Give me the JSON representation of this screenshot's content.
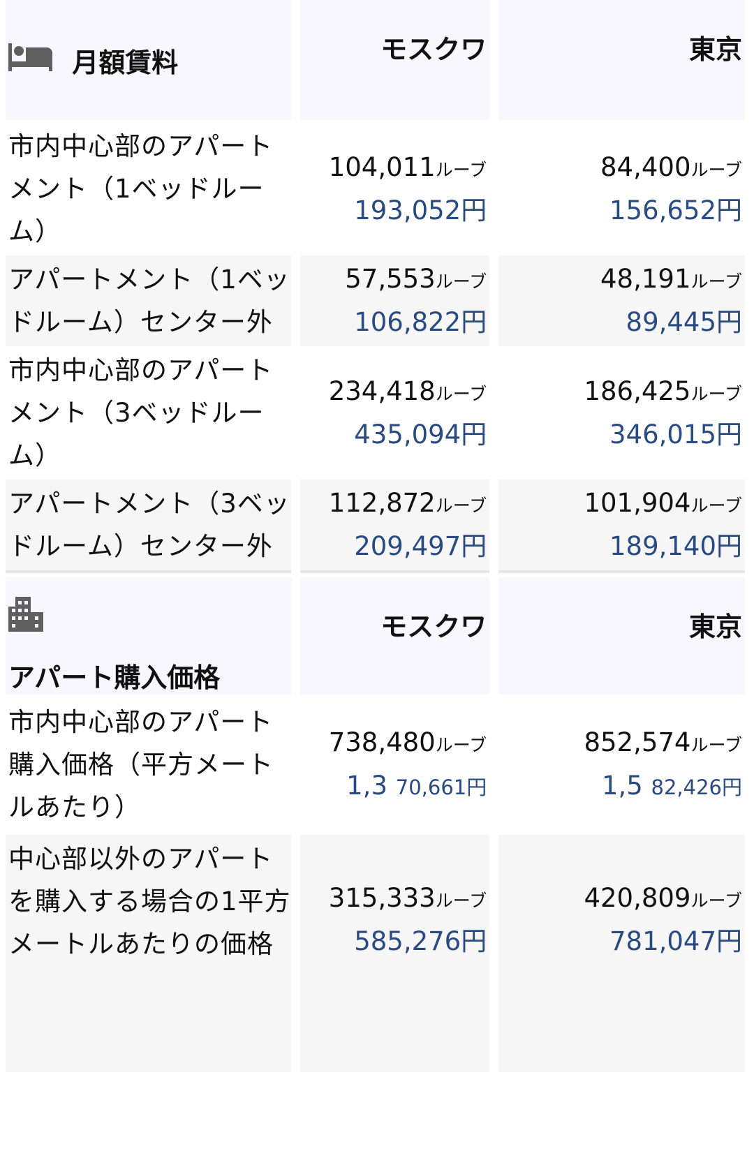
{
  "sections": [
    {
      "title": "月額賃料",
      "icon": "bed-icon",
      "cities": [
        "モスクワ",
        "東京"
      ],
      "rows": [
        {
          "label": "市内中心部のアパートメント（1ベッドルーム）",
          "moscow": {
            "rub": "104,011",
            "yen": "193,052円"
          },
          "tokyo": {
            "rub": "84,400",
            "yen": "156,652円"
          }
        },
        {
          "label": "アパートメント（1ベッドルーム）センター外",
          "moscow": {
            "rub": "57,553",
            "yen": "106,822円"
          },
          "tokyo": {
            "rub": "48,191",
            "yen": "89,445円"
          }
        },
        {
          "label": "市内中心部のアパートメント（3ベッドルーム）",
          "moscow": {
            "rub": "234,418",
            "yen": "435,094円"
          },
          "tokyo": {
            "rub": "186,425",
            "yen": "346,015円"
          }
        },
        {
          "label": "アパートメント（3ベッドルーム）センター外",
          "moscow": {
            "rub": "112,872",
            "yen": "209,497円"
          },
          "tokyo": {
            "rub": "101,904",
            "yen": "189,140円"
          }
        }
      ]
    },
    {
      "title": "アパート購入価格",
      "icon": "building-icon",
      "cities": [
        "モスクワ",
        "東京"
      ],
      "rows": [
        {
          "label": "市内中心部のアパート購入価格（平方メートルあたり）",
          "moscow": {
            "rub": "738,480",
            "yen_big": "1,3",
            "yen": "70,661円"
          },
          "tokyo": {
            "rub": "852,574",
            "yen_big": "1,5",
            "yen": "82,426円"
          }
        },
        {
          "label": "中心部以外のアパートを購入する場合の1平方メートルあたりの価格",
          "moscow": {
            "rub": "315,333",
            "yen": "585,276円"
          },
          "tokyo": {
            "rub": "420,809",
            "yen": "781,047円"
          }
        }
      ]
    }
  ],
  "ruble_unit": "ルーブ",
  "colors": {
    "yen": "#2a4a82",
    "header_bg": "#f7f7fd",
    "alt_row_bg": "#f6f6f6",
    "icon": "#5f5f5f"
  }
}
